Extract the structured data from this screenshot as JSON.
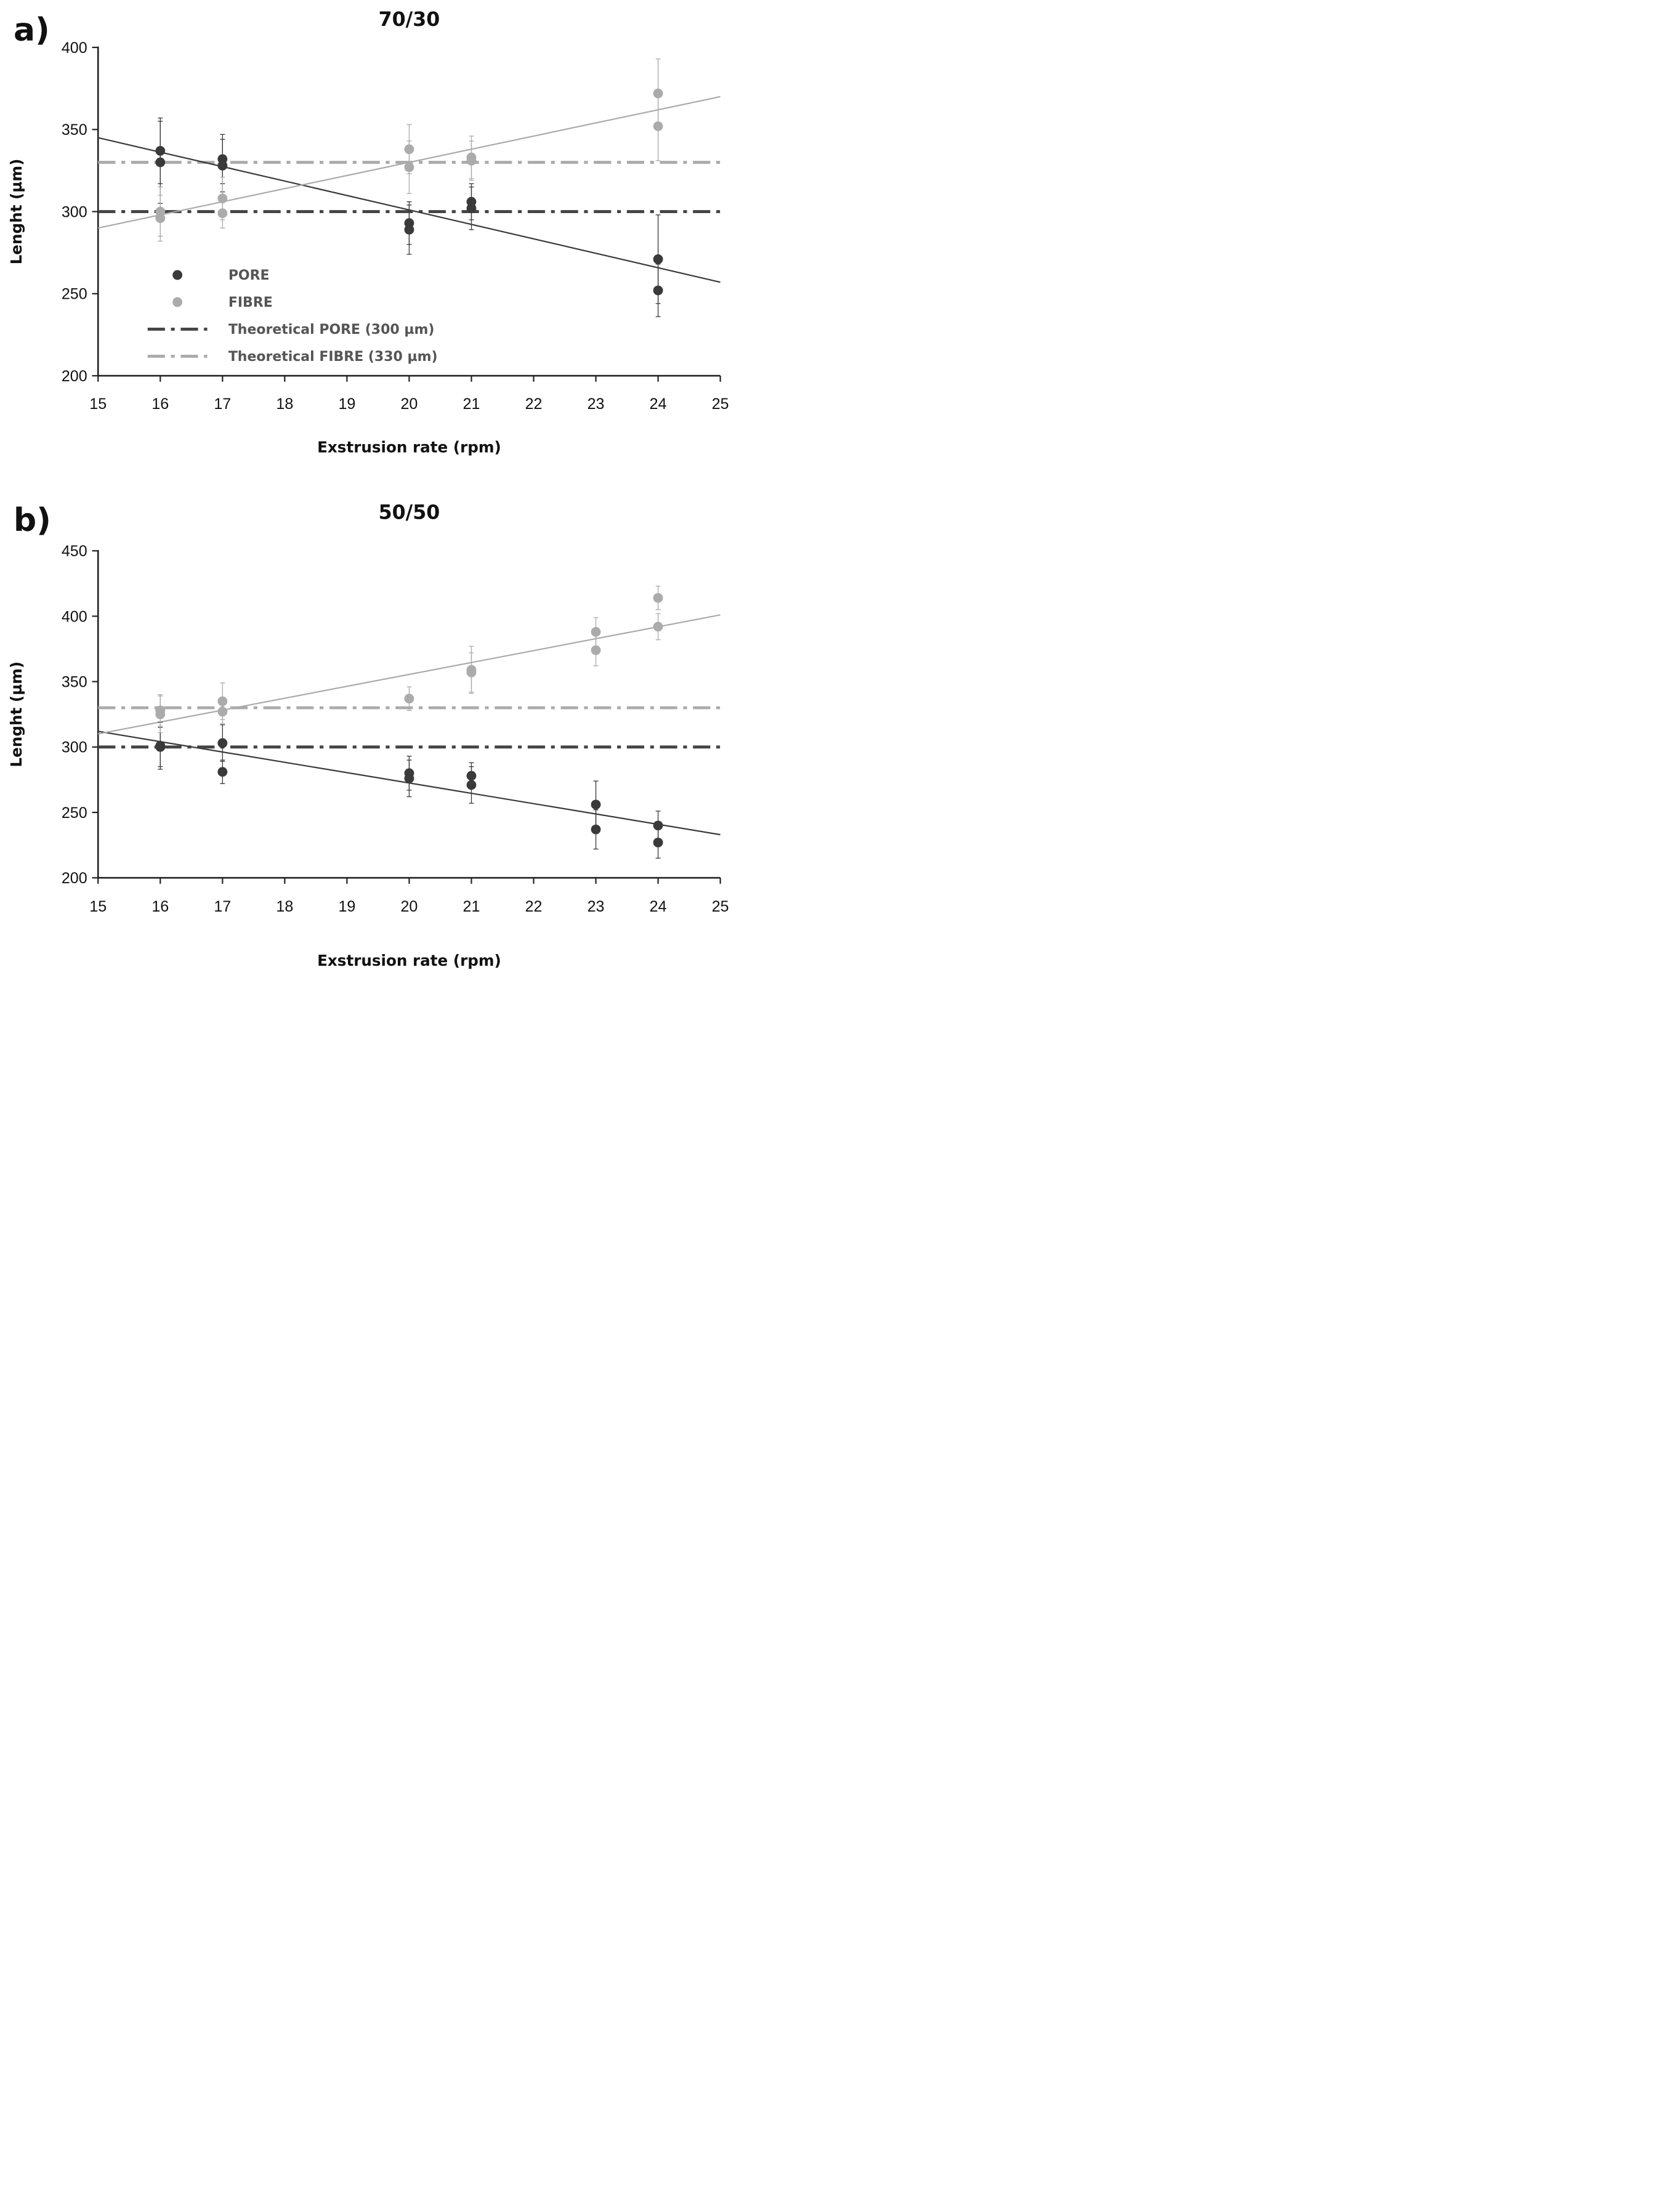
{
  "chart_data": [
    {
      "type": "scatter",
      "panel_label": "a)",
      "title": "70/30",
      "xlabel": "Exstrusion rate (rpm)",
      "ylabel": "Lenght (µm)",
      "xlim": [
        15,
        25
      ],
      "ylim": [
        200,
        400
      ],
      "xticks": [
        15,
        16,
        17,
        18,
        19,
        20,
        21,
        22,
        23,
        24,
        25
      ],
      "yticks": [
        200,
        250,
        300,
        350,
        400
      ],
      "grid": false,
      "legend_position": "lower-left",
      "colors": {
        "pore": "#3a3a3a",
        "fibre": "#ababab"
      },
      "series": [
        {
          "name": "PORE",
          "kind": "points",
          "color": "#3a3a3a",
          "points": [
            {
              "x": 16,
              "y": 337,
              "err": 20
            },
            {
              "x": 16,
              "y": 330,
              "err": 25
            },
            {
              "x": 17,
              "y": 332,
              "err": 15
            },
            {
              "x": 17,
              "y": 328,
              "err": 16
            },
            {
              "x": 20,
              "y": 293,
              "err": 13
            },
            {
              "x": 20,
              "y": 289,
              "err": 15
            },
            {
              "x": 21,
              "y": 306,
              "err": 11
            },
            {
              "x": 21,
              "y": 302,
              "err": 13
            },
            {
              "x": 24,
              "y": 271,
              "err": 27
            },
            {
              "x": 24,
              "y": 252,
              "err": 16
            }
          ]
        },
        {
          "name": "FIBRE",
          "kind": "points",
          "color": "#ababab",
          "points": [
            {
              "x": 16,
              "y": 300,
              "err": 15
            },
            {
              "x": 16,
              "y": 296,
              "err": 14
            },
            {
              "x": 17,
              "y": 308,
              "err": 13
            },
            {
              "x": 17,
              "y": 299,
              "err": 9
            },
            {
              "x": 20,
              "y": 338,
              "err": 15
            },
            {
              "x": 20,
              "y": 327,
              "err": 16
            },
            {
              "x": 21,
              "y": 333,
              "err": 13
            },
            {
              "x": 21,
              "y": 331,
              "err": 12
            },
            {
              "x": 24,
              "y": 372,
              "err": 21
            },
            {
              "x": 24,
              "y": 352,
              "err": 21
            }
          ]
        },
        {
          "name": "Theoretical PORE (300 µm)",
          "kind": "hline",
          "y": 300,
          "color": "#444444"
        },
        {
          "name": "Theoretical FIBRE (330 µm)",
          "kind": "hline",
          "y": 330,
          "color": "#ababab"
        },
        {
          "kind": "trend",
          "color": "#3a3a3a",
          "from": [
            15,
            345
          ],
          "to": [
            25,
            257
          ]
        },
        {
          "kind": "trend",
          "color": "#ababab",
          "from": [
            15,
            290
          ],
          "to": [
            25,
            370
          ]
        }
      ]
    },
    {
      "type": "scatter",
      "panel_label": "b)",
      "title": "50/50",
      "xlabel": "Exstrusion rate (rpm)",
      "ylabel": "Lenght (µm)",
      "xlim": [
        15,
        25
      ],
      "ylim": [
        200,
        450
      ],
      "xticks": [
        15,
        16,
        17,
        18,
        19,
        20,
        21,
        22,
        23,
        24,
        25
      ],
      "yticks": [
        200,
        250,
        300,
        350,
        400,
        450
      ],
      "grid": false,
      "colors": {
        "pore": "#3a3a3a",
        "fibre": "#ababab"
      },
      "series": [
        {
          "kind": "points",
          "color": "#3a3a3a",
          "points": [
            {
              "x": 16,
              "y": 301,
              "err": 18
            },
            {
              "x": 16,
              "y": 300,
              "err": 15
            },
            {
              "x": 17,
              "y": 303,
              "err": 14
            },
            {
              "x": 17,
              "y": 281,
              "err": 9
            },
            {
              "x": 20,
              "y": 280,
              "err": 13
            },
            {
              "x": 20,
              "y": 276,
              "err": 14
            },
            {
              "x": 21,
              "y": 278,
              "err": 10
            },
            {
              "x": 21,
              "y": 271,
              "err": 14
            },
            {
              "x": 23,
              "y": 256,
              "err": 18
            },
            {
              "x": 23,
              "y": 237,
              "err": 15
            },
            {
              "x": 24,
              "y": 240,
              "err": 11
            },
            {
              "x": 24,
              "y": 227,
              "err": 12
            }
          ]
        },
        {
          "kind": "points",
          "color": "#ababab",
          "points": [
            {
              "x": 16,
              "y": 328,
              "err": 12
            },
            {
              "x": 16,
              "y": 325,
              "err": 14
            },
            {
              "x": 17,
              "y": 335,
              "err": 14
            },
            {
              "x": 17,
              "y": 327,
              "err": 9
            },
            {
              "x": 20,
              "y": 337,
              "err": 9
            },
            {
              "x": 21,
              "y": 359,
              "err": 18
            },
            {
              "x": 21,
              "y": 357,
              "err": 15
            },
            {
              "x": 23,
              "y": 388,
              "err": 11
            },
            {
              "x": 23,
              "y": 374,
              "err": 12
            },
            {
              "x": 24,
              "y": 414,
              "err": 9
            },
            {
              "x": 24,
              "y": 392,
              "err": 10
            }
          ]
        },
        {
          "kind": "hline",
          "y": 300,
          "color": "#444444"
        },
        {
          "kind": "hline",
          "y": 330,
          "color": "#ababab"
        },
        {
          "kind": "trend",
          "color": "#3a3a3a",
          "from": [
            15,
            312
          ],
          "to": [
            25,
            233
          ]
        },
        {
          "kind": "trend",
          "color": "#ababab",
          "from": [
            15,
            310
          ],
          "to": [
            25,
            401
          ]
        }
      ]
    }
  ]
}
